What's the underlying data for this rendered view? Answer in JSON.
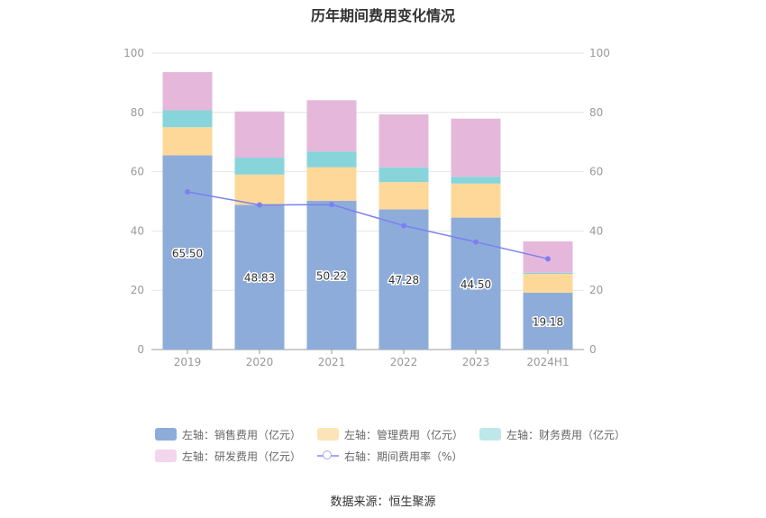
{
  "chart_data": {
    "type": "bar",
    "title": "历年期间费用变化情况",
    "categories": [
      "2019",
      "2020",
      "2021",
      "2022",
      "2023",
      "2024H1"
    ],
    "stacked": true,
    "series": [
      {
        "name": "左轴：销售费用（亿元）",
        "axis": "left",
        "color": "#8eacd9",
        "values": [
          65.5,
          48.83,
          50.22,
          47.28,
          44.5,
          19.18
        ],
        "labels": [
          "65.50",
          "48.83",
          "50.22",
          "47.28",
          "44.50",
          "19.18"
        ]
      },
      {
        "name": "左轴：管理费用（亿元）",
        "axis": "left",
        "color": "#fdd898",
        "values": [
          9.5,
          10.2,
          11.3,
          9.2,
          11.5,
          6.3
        ]
      },
      {
        "name": "左轴：财务费用（亿元）",
        "axis": "left",
        "color": "#88d4db",
        "values": [
          5.7,
          5.7,
          5.3,
          5.0,
          2.3,
          0.4
        ]
      },
      {
        "name": "左轴：研发费用（亿元）",
        "axis": "left",
        "color": "#e5b8db",
        "values": [
          12.9,
          15.6,
          17.3,
          17.9,
          19.6,
          10.6
        ]
      }
    ],
    "line_series": {
      "name": "右轴：期间费用率（%）",
      "axis": "right",
      "color": "#7b80f0",
      "values": [
        53.2,
        48.8,
        48.9,
        41.8,
        36.3,
        30.6
      ]
    },
    "ylim_left": [
      0,
      100
    ],
    "ylim_right": [
      0,
      100
    ],
    "y_ticks": [
      "0",
      "20",
      "40",
      "60",
      "80",
      "100"
    ],
    "legend_position": "bottom",
    "grid": true
  },
  "legend": {
    "row1": [
      {
        "label": "左轴：销售费用（亿元）",
        "color": "#8eacd9"
      },
      {
        "label": "左轴：管理费用（亿元）",
        "color": "#fde4b8"
      },
      {
        "label": "左轴：财务费用（亿元）",
        "color": "#bde8ea"
      }
    ],
    "row2": [
      {
        "label": "左轴：研发费用（亿元）",
        "color": "#f1d6ec"
      },
      {
        "label": "右轴：期间费用率（%）",
        "color": "#a3a6f5"
      }
    ]
  },
  "source": "数据来源：恒生聚源"
}
